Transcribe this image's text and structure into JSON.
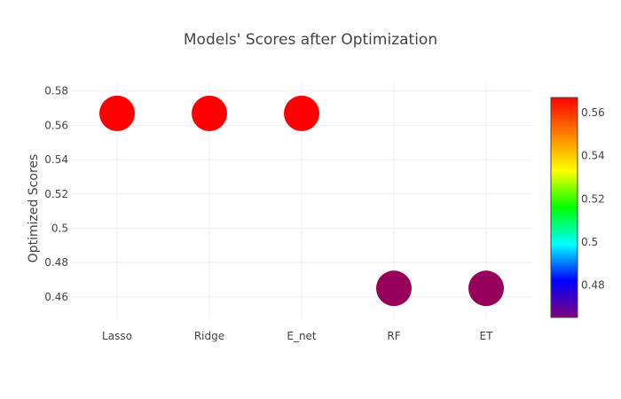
{
  "chart_data": {
    "type": "scatter",
    "title": "Models' Scores after Optimization",
    "xlabel": "",
    "ylabel": "Optimized Scores",
    "categories": [
      "Lasso",
      "Ridge",
      "E_net",
      "RF",
      "ET"
    ],
    "values": [
      0.567,
      0.567,
      0.567,
      0.465,
      0.465
    ],
    "ylim": [
      0.447,
      0.584
    ],
    "y_ticks": [
      0.46,
      0.48,
      0.5,
      0.52,
      0.54,
      0.56,
      0.58
    ],
    "y_tick_labels": [
      "0.46",
      "0.48",
      "0.5",
      "0.52",
      "0.54",
      "0.56",
      "0.58"
    ],
    "grid": true,
    "colorscale": {
      "name": "Rainbow",
      "range": [
        0.465,
        0.567
      ],
      "ticks": [
        0.48,
        0.5,
        0.52,
        0.54,
        0.56
      ],
      "tick_labels": [
        "0.48",
        "0.5",
        "0.52",
        "0.54",
        "0.56"
      ],
      "placement": "right",
      "stops": [
        "#800080",
        "#0000FF",
        "#00FFFF",
        "#00FF00",
        "#FFFF00",
        "#FF8000",
        "#FF0000"
      ]
    },
    "marker_colors": [
      "#FF0000",
      "#FF0000",
      "#FF0000",
      "#96005A",
      "#96005A"
    ]
  }
}
